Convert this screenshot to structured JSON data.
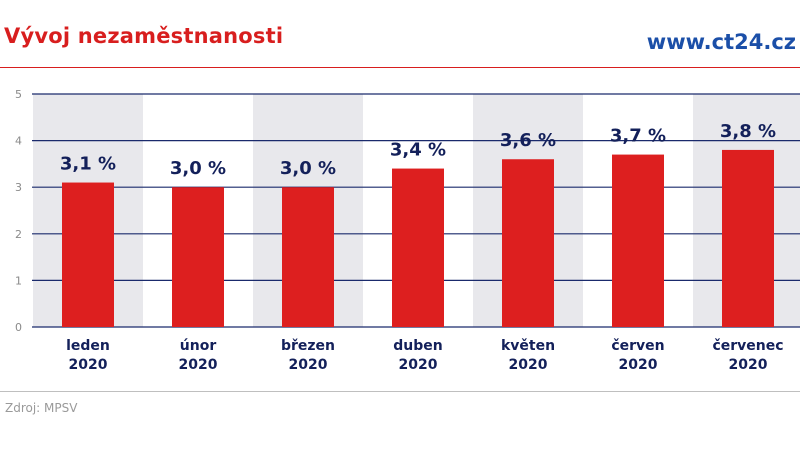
{
  "header": {
    "title": "Vývoj nezaměstnanosti",
    "brand": "www.ct24.cz"
  },
  "footer": {
    "source": "Zdroj: MPSV"
  },
  "colors": {
    "title": "#d81e1e",
    "brand": "#1b4fa8",
    "bar": "#dd1f1f",
    "stripe": "#e8e8ec",
    "grid": "#1a2a6c",
    "label": "#13205a"
  },
  "chart_data": {
    "type": "bar",
    "title": "Vývoj nezaměstnanosti",
    "xlabel": "",
    "ylabel": "",
    "ylim": [
      0,
      5
    ],
    "yticks": [
      "0",
      "1",
      "2",
      "3",
      "4",
      "5"
    ],
    "grid": true,
    "categories": [
      {
        "month": "leden",
        "year": "2020"
      },
      {
        "month": "únor",
        "year": "2020"
      },
      {
        "month": "březen",
        "year": "2020"
      },
      {
        "month": "duben",
        "year": "2020"
      },
      {
        "month": "květen",
        "year": "2020"
      },
      {
        "month": "červen",
        "year": "2020"
      },
      {
        "month": "červenec",
        "year": "2020"
      }
    ],
    "values": [
      3.1,
      3.0,
      3.0,
      3.4,
      3.6,
      3.7,
      3.8
    ],
    "value_labels": [
      "3,1 %",
      "3,0 %",
      "3,0 %",
      "3,4 %",
      "3,6 %",
      "3,7 %",
      "3,8 %"
    ]
  }
}
